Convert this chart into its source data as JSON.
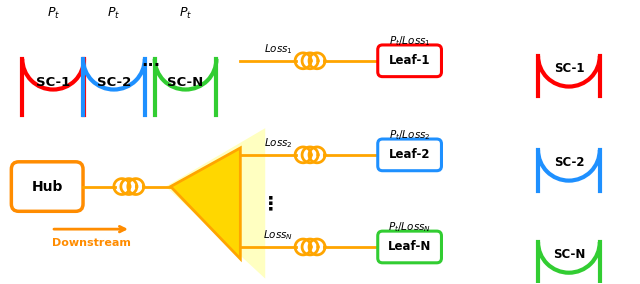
{
  "fig_width": 6.4,
  "fig_height": 2.84,
  "bg_color": "#ffffff",
  "orange": "#FF8C00",
  "orange_line": "#FFA500",
  "yellow_glow": "#FFFF88",
  "red": "#FF0000",
  "blue": "#1E90FF",
  "green": "#32CD32",
  "black": "#000000",
  "hub_label": "Hub",
  "downstream_label": "Downstream",
  "sc_left_labels": [
    "SC-1",
    "SC-2",
    "SC-N"
  ],
  "sc_left_colors": [
    "#FF0000",
    "#1E90FF",
    "#32CD32"
  ],
  "pt_labels": [
    "$P_t$",
    "$P_t$",
    "$P_t$"
  ],
  "leaf_labels": [
    "Leaf-1",
    "Leaf-2",
    "Leaf-N"
  ],
  "leaf_colors": [
    "#FF0000",
    "#1E90FF",
    "#32CD32"
  ],
  "sc_right_labels": [
    "SC-1",
    "SC-2",
    "SC-N"
  ],
  "sc_right_colors": [
    "#FF0000",
    "#1E90FF",
    "#32CD32"
  ],
  "loss_labels": [
    "$Loss_1$",
    "$Loss_2$",
    "$Loss_N$"
  ],
  "pt_loss_labels": [
    "$P_t/Loss_1$",
    "$P_t/Loss_2$",
    "$P_t/Loss_N$"
  ]
}
